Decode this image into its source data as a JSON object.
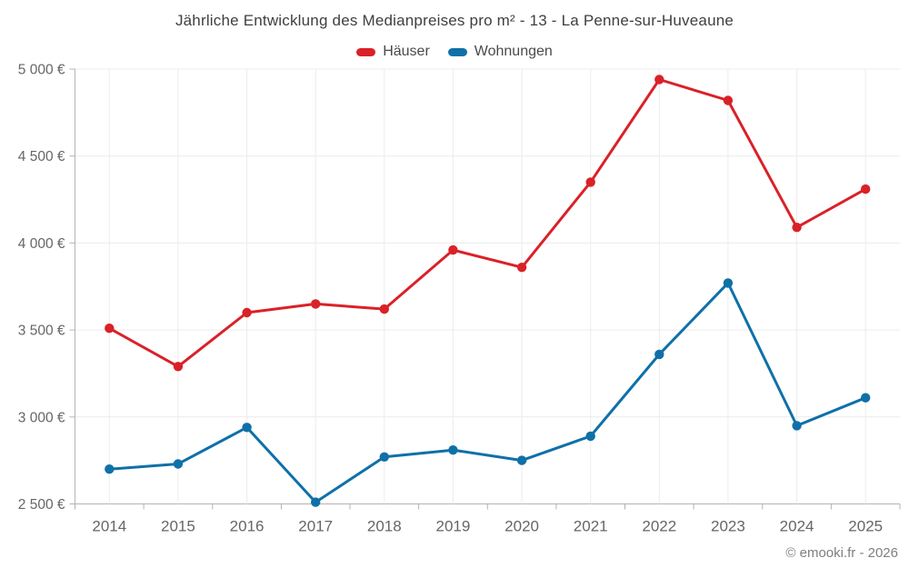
{
  "title": "Jährliche Entwicklung des Medianpreises pro m² - 13 - La Penne-sur-Huveaune",
  "copyright": "© emooki.fr - 2026",
  "legend": [
    {
      "label": "Häuser",
      "color": "#da2128"
    },
    {
      "label": "Wohnungen",
      "color": "#0f70a8"
    }
  ],
  "chart_data": {
    "type": "line",
    "title": "Jährliche Entwicklung des Medianpreises pro m² - 13 - La Penne-sur-Huveaune",
    "xlabel": "",
    "ylabel": "",
    "grid": true,
    "legend_position": "top",
    "ylim": [
      2500,
      5000
    ],
    "y_ticks": [
      2500,
      3000,
      3500,
      4000,
      4500,
      5000
    ],
    "y_tick_labels": [
      "2 500 €",
      "3 000 €",
      "3 500 €",
      "4 000 €",
      "4 500 €",
      "5 000 €"
    ],
    "categories": [
      "2014",
      "2015",
      "2016",
      "2017",
      "2018",
      "2019",
      "2020",
      "2021",
      "2022",
      "2023",
      "2024",
      "2025"
    ],
    "series": [
      {
        "name": "Häuser",
        "color": "#da2128",
        "values": [
          3510,
          3290,
          3600,
          3650,
          3620,
          3960,
          3860,
          4350,
          4940,
          4820,
          4090,
          4310
        ]
      },
      {
        "name": "Wohnungen",
        "color": "#0f70a8",
        "values": [
          2700,
          2730,
          2940,
          2510,
          2770,
          2810,
          2750,
          2890,
          3360,
          3770,
          2950,
          3110
        ]
      }
    ],
    "colors": {
      "grid": "#ececec",
      "axis": "#b3b3b3",
      "tick_text": "#666666"
    }
  }
}
